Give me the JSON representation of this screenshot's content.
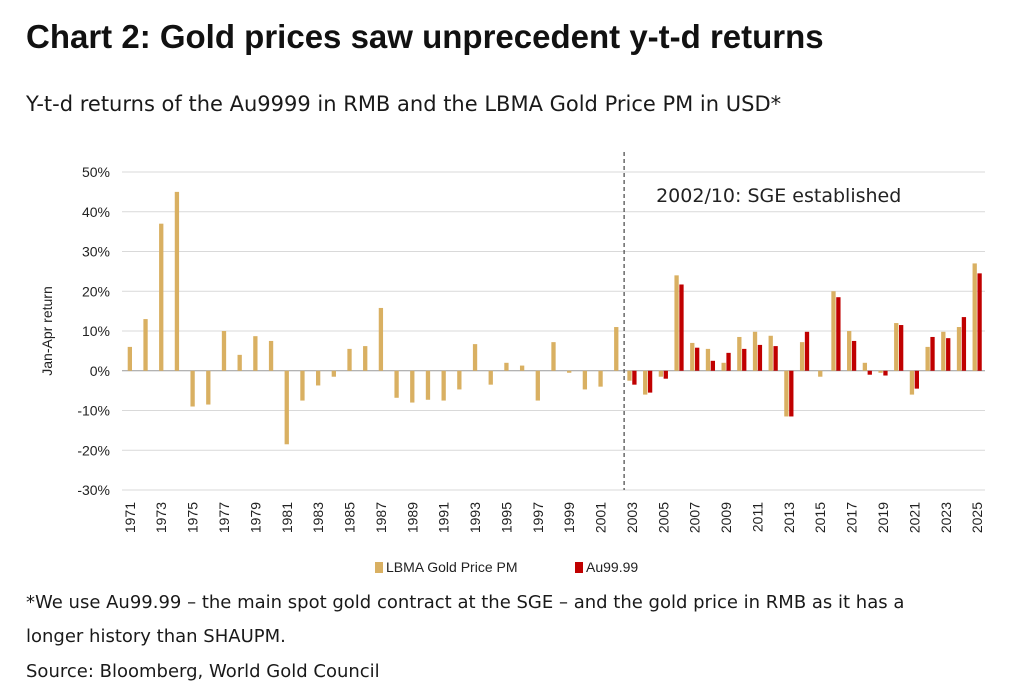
{
  "title": "Chart 2: Gold prices saw unprecedent y-t-d returns",
  "subtitle": "Y-t-d returns of the Au9999 in RMB and the LBMA Gold Price PM in USD*",
  "footnote_line1": "*We use Au99.99 – the main spot gold contract at the SGE – and the gold price in RMB as it has a",
  "footnote_line2": "longer history than SHAUPM.",
  "source": "Source: Bloomberg, World Gold Council",
  "chart_data": {
    "type": "bar",
    "ylabel": "Jan-Apr return",
    "ylim": [
      -30,
      50
    ],
    "yticks": [
      -30,
      -20,
      -10,
      0,
      10,
      20,
      30,
      40,
      50
    ],
    "ytick_labels": [
      "-30%",
      "-20%",
      "-10%",
      "0%",
      "10%",
      "20%",
      "30%",
      "40%",
      "50%"
    ],
    "grid": true,
    "legend_position": "bottom-center",
    "annotation": {
      "text": "2002/10: SGE established",
      "at_x": 2002.5
    },
    "x": [
      1971,
      1972,
      1973,
      1974,
      1975,
      1976,
      1977,
      1978,
      1979,
      1980,
      1981,
      1982,
      1983,
      1984,
      1985,
      1986,
      1987,
      1988,
      1989,
      1990,
      1991,
      1992,
      1993,
      1994,
      1995,
      1996,
      1997,
      1998,
      1999,
      2000,
      2001,
      2002,
      2003,
      2004,
      2005,
      2006,
      2007,
      2008,
      2009,
      2010,
      2011,
      2012,
      2013,
      2014,
      2015,
      2016,
      2017,
      2018,
      2019,
      2020,
      2021,
      2022,
      2023,
      2024,
      2025
    ],
    "xtick_labels": [
      "1971",
      "1973",
      "1975",
      "1977",
      "1979",
      "1981",
      "1983",
      "1985",
      "1987",
      "1989",
      "1991",
      "1993",
      "1995",
      "1997",
      "1999",
      "2001",
      "2003",
      "2005",
      "2007",
      "2009",
      "2011",
      "2013",
      "2015",
      "2017",
      "2019",
      "2021",
      "2023",
      "2025"
    ],
    "series": [
      {
        "name": "LBMA Gold Price PM",
        "color": "#d9b062",
        "values": [
          6,
          13,
          37,
          45,
          -9,
          -8.5,
          10,
          4,
          8.7,
          7.5,
          -18.5,
          -7.5,
          -3.7,
          -1.5,
          5.5,
          6.2,
          15.8,
          -6.8,
          -8,
          -7.3,
          -7.5,
          -4.7,
          6.7,
          -3.5,
          2,
          1.3,
          -7.5,
          7.2,
          -0.5,
          -4.7,
          -4,
          11,
          -2.5,
          -6,
          -1.5,
          24,
          7,
          5.5,
          2,
          8.5,
          9.8,
          8.8,
          -11.5,
          7.2,
          -1.5,
          20,
          10,
          2,
          -0.5,
          12,
          -6,
          6,
          9.8,
          11,
          27
        ]
      },
      {
        "name": "Au99.99",
        "color": "#c00000",
        "values": [
          null,
          null,
          null,
          null,
          null,
          null,
          null,
          null,
          null,
          null,
          null,
          null,
          null,
          null,
          null,
          null,
          null,
          null,
          null,
          null,
          null,
          null,
          null,
          null,
          null,
          null,
          null,
          null,
          null,
          null,
          null,
          null,
          -3.5,
          -5.5,
          -2,
          21.7,
          5.8,
          2.5,
          4.5,
          5.5,
          6.5,
          6.2,
          -11.5,
          9.8,
          null,
          18.5,
          7.5,
          -1,
          -1.2,
          11.5,
          -4.5,
          8.5,
          8.2,
          13.5,
          24.5
        ]
      }
    ]
  }
}
